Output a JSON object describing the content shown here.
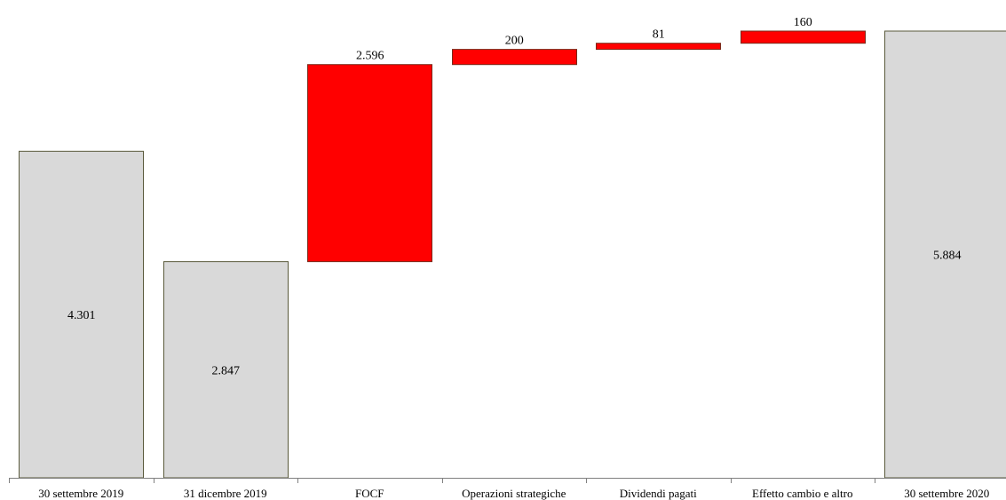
{
  "chart_data": {
    "type": "bar",
    "subtype": "waterfall",
    "title": "",
    "xlabel": "",
    "ylabel": "",
    "grid": false,
    "legend": "none",
    "ylim": [
      0,
      6000
    ],
    "colors": {
      "total": "#d9d9d9",
      "change": "#ff0000",
      "border": "#5a5a3c",
      "axis": "#808080"
    },
    "categories": [
      "30 settembre 2019",
      "31 dicembre 2019",
      "FOCF",
      "Operazioni strategiche",
      "Dividendi pagati",
      "Effetto cambio e altro",
      "30 settembre 2020"
    ],
    "bars": [
      {
        "kind": "total",
        "start": 0,
        "end": 4301,
        "label": "4.301"
      },
      {
        "kind": "total",
        "start": 0,
        "end": 2847,
        "label": "2.847"
      },
      {
        "kind": "change",
        "start": 2847,
        "end": 5443,
        "label": "2.596"
      },
      {
        "kind": "change",
        "start": 5443,
        "end": 5643,
        "label": "200"
      },
      {
        "kind": "change",
        "start": 5643,
        "end": 5724,
        "label": "81"
      },
      {
        "kind": "change",
        "start": 5724,
        "end": 5884,
        "label": "160"
      },
      {
        "kind": "total",
        "start": 0,
        "end": 5884,
        "label": "5.884"
      }
    ]
  }
}
